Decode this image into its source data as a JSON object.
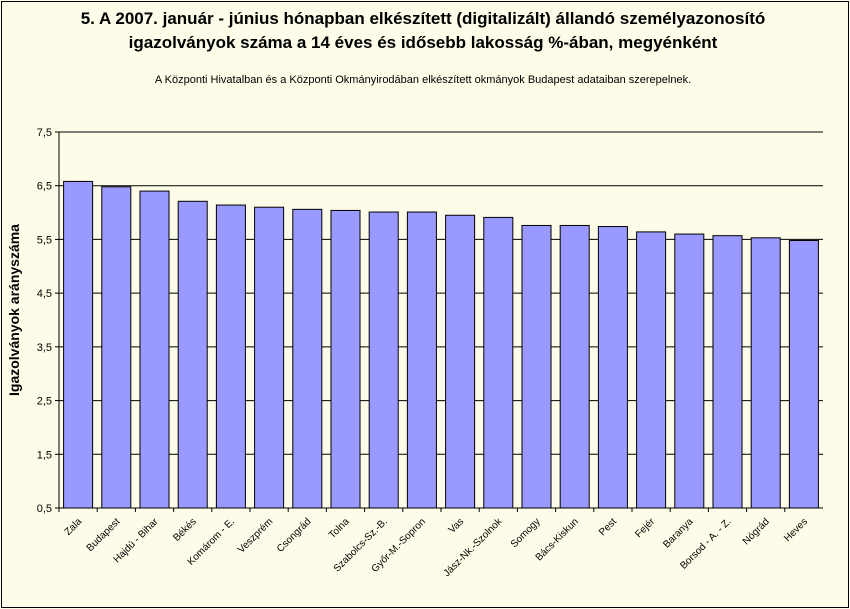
{
  "chart_data": {
    "type": "bar",
    "title": [
      "5. A 2007. január - június hónapban elkészített (digitalizált) állandó személyazonosító",
      "igazolványok száma a 14 éves és idősebb lakosság %-ában, megyénként"
    ],
    "subtitle": "A  Központi Hivatalban és a Központi Okmányirodában elkészített  okmányok Budapest adataiban szerepelnek.",
    "xlabel": "",
    "ylabel": "Igazolványok arányszáma",
    "ylim": [
      0.5,
      7.5
    ],
    "yticks": [
      "0,5",
      "1,5",
      "2,5",
      "3,5",
      "4,5",
      "5,5",
      "6,5",
      "7,5"
    ],
    "categories": [
      "Zala",
      "Budapest",
      "Hajdú - Bihar",
      "Békés",
      "Komárom - E.",
      "Veszprém",
      "Csongrád",
      "Tolna",
      "Szabolcs-Sz.-B.",
      "Győr-M.-Sopron",
      "Vas",
      "Jász-Nk.-Szolnok",
      "Somogy",
      "Bács-Kiskun",
      "Pest",
      "Fejér",
      "Baranya",
      "Borsod - A. - Z.",
      "Nógrád",
      "Heves"
    ],
    "values": [
      6.58,
      6.48,
      6.4,
      6.21,
      6.14,
      6.1,
      6.06,
      6.04,
      6.01,
      6.01,
      5.95,
      5.91,
      5.76,
      5.76,
      5.74,
      5.64,
      5.6,
      5.57,
      5.53,
      5.48
    ],
    "grid": true,
    "bar_color": "#9999ff",
    "background_color": "#fdfce8"
  }
}
